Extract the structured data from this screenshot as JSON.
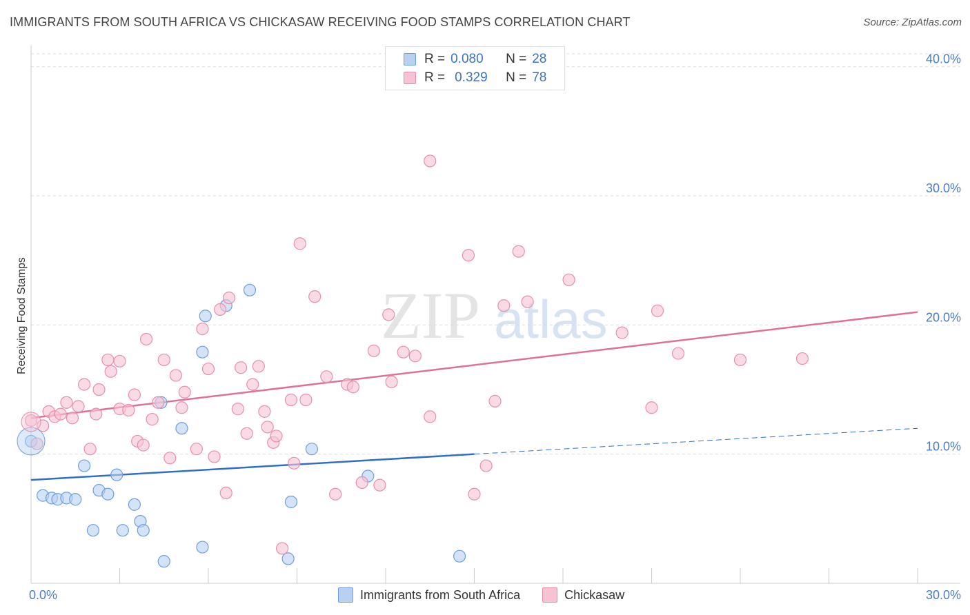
{
  "header": {
    "title": "IMMIGRANTS FROM SOUTH AFRICA VS CHICKASAW RECEIVING FOOD STAMPS CORRELATION CHART",
    "source": "Source: ZipAtlas.com"
  },
  "watermark": {
    "zip": "ZIP",
    "atlas": "atlas"
  },
  "legend": {
    "rows": [
      {
        "r_label": "R =",
        "r_value": "0.080",
        "n_label": "N =",
        "n_value": "28"
      },
      {
        "r_label": "R =",
        "r_value": "0.329",
        "n_label": "N =",
        "n_value": "78"
      }
    ]
  },
  "colors": {
    "blue_fill": "#b8d0f1",
    "blue_stroke": "#6d9de0",
    "blue_line": "#2f6fc9",
    "pink_fill": "#f7c3d3",
    "pink_stroke": "#e78eab",
    "pink_line": "#e0709a",
    "tick_text": "#4a7cc8",
    "grid": "#dddddd"
  },
  "chart_data": {
    "type": "scatter",
    "ylabel": "Receiving Food Stamps",
    "xlim": [
      0,
      30
    ],
    "ylim": [
      0,
      41
    ],
    "x_ticks": [
      "0.0%",
      "30.0%"
    ],
    "y_ticks": [
      {
        "value": 10,
        "label": "10.0%"
      },
      {
        "value": 20,
        "label": "20.0%"
      },
      {
        "value": 30,
        "label": "30.0%"
      },
      {
        "value": 40,
        "label": "40.0%"
      }
    ],
    "series": [
      {
        "name": "Immigrants from South Africa",
        "color": "blue",
        "trend": {
          "x0": 0,
          "y0": 8.0,
          "x1": 15.0,
          "y1": 10.0,
          "dash_to_x": 30,
          "dash_to_y": 12.0
        },
        "points": [
          [
            0.0,
            11.0
          ],
          [
            0.4,
            6.8
          ],
          [
            0.7,
            6.6
          ],
          [
            0.9,
            6.5
          ],
          [
            1.2,
            6.6
          ],
          [
            1.5,
            6.5
          ],
          [
            1.8,
            9.1
          ],
          [
            2.1,
            4.1
          ],
          [
            2.3,
            7.2
          ],
          [
            2.6,
            6.9
          ],
          [
            2.9,
            8.4
          ],
          [
            3.1,
            4.1
          ],
          [
            3.5,
            6.1
          ],
          [
            3.7,
            4.8
          ],
          [
            3.8,
            4.1
          ],
          [
            4.4,
            14.0
          ],
          [
            4.5,
            1.7
          ],
          [
            5.1,
            12.0
          ],
          [
            5.8,
            2.8
          ],
          [
            5.8,
            17.9
          ],
          [
            5.9,
            20.7
          ],
          [
            6.6,
            21.5
          ],
          [
            7.4,
            22.7
          ],
          [
            8.7,
            1.9
          ],
          [
            8.8,
            6.3
          ],
          [
            9.5,
            10.4
          ],
          [
            11.4,
            8.3
          ],
          [
            14.5,
            2.1
          ]
        ]
      },
      {
        "name": "Chickasaw",
        "color": "pink",
        "trend": {
          "x0": 0,
          "y0": 12.8,
          "x1": 30,
          "y1": 21.0
        },
        "points": [
          [
            0.0,
            12.6
          ],
          [
            0.2,
            10.8
          ],
          [
            0.4,
            12.2
          ],
          [
            0.6,
            13.3
          ],
          [
            0.8,
            12.9
          ],
          [
            1.0,
            13.1
          ],
          [
            1.2,
            14.0
          ],
          [
            1.4,
            12.8
          ],
          [
            1.6,
            13.7
          ],
          [
            1.8,
            15.4
          ],
          [
            2.0,
            10.4
          ],
          [
            2.2,
            13.1
          ],
          [
            2.3,
            15.0
          ],
          [
            2.6,
            17.3
          ],
          [
            2.7,
            16.4
          ],
          [
            3.0,
            13.5
          ],
          [
            3.0,
            17.2
          ],
          [
            3.3,
            13.4
          ],
          [
            3.5,
            14.6
          ],
          [
            3.6,
            11.0
          ],
          [
            3.8,
            10.7
          ],
          [
            3.9,
            18.9
          ],
          [
            4.1,
            12.7
          ],
          [
            4.3,
            14.0
          ],
          [
            4.5,
            17.3
          ],
          [
            4.7,
            9.7
          ],
          [
            4.9,
            16.1
          ],
          [
            5.1,
            13.6
          ],
          [
            5.2,
            14.8
          ],
          [
            5.6,
            10.4
          ],
          [
            5.8,
            19.7
          ],
          [
            6.0,
            16.6
          ],
          [
            6.2,
            9.8
          ],
          [
            6.4,
            21.2
          ],
          [
            6.6,
            7.0
          ],
          [
            6.7,
            22.1
          ],
          [
            7.0,
            13.5
          ],
          [
            7.1,
            16.7
          ],
          [
            7.3,
            11.6
          ],
          [
            7.5,
            15.4
          ],
          [
            7.7,
            16.8
          ],
          [
            7.9,
            13.3
          ],
          [
            8.0,
            12.1
          ],
          [
            8.2,
            10.9
          ],
          [
            8.3,
            11.4
          ],
          [
            8.5,
            2.7
          ],
          [
            8.8,
            14.2
          ],
          [
            8.9,
            9.3
          ],
          [
            9.1,
            26.3
          ],
          [
            9.3,
            14.2
          ],
          [
            9.6,
            22.2
          ],
          [
            10.0,
            16.0
          ],
          [
            10.3,
            6.9
          ],
          [
            10.7,
            15.4
          ],
          [
            10.9,
            15.2
          ],
          [
            11.2,
            7.8
          ],
          [
            11.6,
            18.0
          ],
          [
            11.8,
            7.6
          ],
          [
            12.1,
            20.8
          ],
          [
            12.2,
            15.6
          ],
          [
            12.6,
            17.9
          ],
          [
            13.0,
            17.6
          ],
          [
            13.5,
            12.9
          ],
          [
            13.5,
            32.7
          ],
          [
            14.8,
            25.4
          ],
          [
            15.0,
            6.9
          ],
          [
            15.4,
            9.1
          ],
          [
            15.7,
            14.1
          ],
          [
            16.0,
            21.5
          ],
          [
            16.5,
            25.7
          ],
          [
            16.8,
            21.8
          ],
          [
            18.2,
            23.5
          ],
          [
            20.0,
            19.4
          ],
          [
            21.0,
            13.6
          ],
          [
            21.2,
            21.1
          ],
          [
            21.9,
            17.8
          ],
          [
            24.0,
            17.3
          ],
          [
            26.1,
            17.4
          ]
        ]
      }
    ]
  }
}
